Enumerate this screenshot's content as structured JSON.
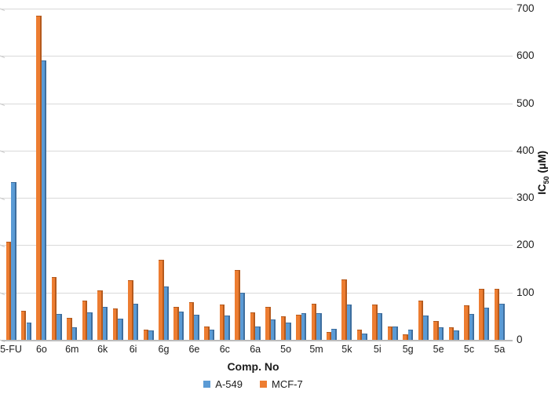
{
  "chart_data": {
    "type": "bar",
    "title": "",
    "xlabel": "Comp. No",
    "ylabel": "IC50 (μM)",
    "ylabel_parts": {
      "base": "IC",
      "sub": "50",
      "unit": "(μM)"
    },
    "ylim": [
      0,
      700
    ],
    "yticks": [
      0,
      100,
      200,
      300,
      400,
      500,
      600,
      700
    ],
    "grid": true,
    "legend_position": "bottom",
    "categories": [
      "5-FU",
      "",
      "6o",
      "",
      "6m",
      "",
      "6k",
      "",
      "6i",
      "",
      "6g",
      "",
      "6e",
      "",
      "6c",
      "",
      "6a",
      "",
      "5o",
      "",
      "5m",
      "",
      "5k",
      "",
      "5i",
      "",
      "5g",
      "",
      "5e",
      "",
      "5c",
      "",
      "5a"
    ],
    "series": [
      {
        "name": "A-549",
        "color": "#5B9BD5",
        "edge_color": "#3E6E9E",
        "values": [
          333,
          37,
          591,
          55,
          26,
          58,
          69,
          44,
          76,
          20,
          113,
          60,
          53,
          22,
          51,
          100,
          29,
          43,
          37,
          57,
          56,
          23,
          75,
          13,
          57,
          28,
          21,
          52,
          27,
          20,
          55,
          68,
          76
        ]
      },
      {
        "name": "MCF-7",
        "color": "#ED7D31",
        "edge_color": "#B55A1D",
        "values": [
          208,
          61,
          685,
          132,
          47,
          83,
          104,
          67,
          126,
          21,
          169,
          69,
          80,
          29,
          75,
          148,
          58,
          70,
          50,
          53,
          76,
          16,
          128,
          22,
          74,
          29,
          12,
          83,
          40,
          27,
          73,
          108,
          107
        ]
      }
    ],
    "draw_order": [
      1,
      0
    ]
  }
}
